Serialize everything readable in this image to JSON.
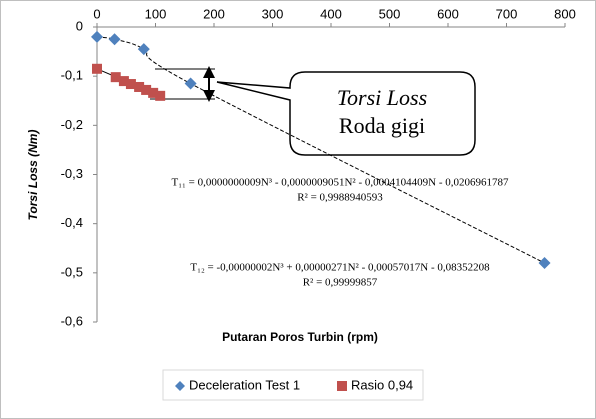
{
  "chart_data": {
    "type": "scatter",
    "xlabel": "Putaran Poros Turbin (rpm)",
    "ylabel": "Torsi Loss (Nm)",
    "xlim": [
      0,
      800
    ],
    "xticks": [
      0,
      100,
      200,
      300,
      400,
      500,
      600,
      700,
      800
    ],
    "ylim": [
      -0.6,
      0
    ],
    "yticks": [
      0,
      {
        "value": -0.1,
        "label": "-0,1"
      },
      {
        "value": -0.2,
        "label": "-0,2"
      },
      {
        "value": -0.3,
        "label": "-0,3"
      },
      {
        "value": -0.4,
        "label": "-0,4"
      },
      {
        "value": -0.5,
        "label": "-0,5"
      },
      {
        "value": -0.6,
        "label": "-0,6"
      }
    ],
    "grid": false,
    "series": [
      {
        "name": "Deceleration Test 1",
        "color": "#4f81bd",
        "marker": "diamond",
        "trendline": "dashed",
        "x": [
          0,
          30,
          80,
          160,
          765
        ],
        "values": [
          -0.02,
          -0.025,
          -0.045,
          -0.115,
          -0.48
        ]
      },
      {
        "name": "Rasio 0,94",
        "color": "#c0504d",
        "marker": "square",
        "trendline": "solid",
        "x": [
          0,
          32,
          46,
          58,
          72,
          84,
          96,
          108
        ],
        "values": [
          -0.085,
          -0.102,
          -0.11,
          -0.116,
          -0.122,
          -0.128,
          -0.134,
          -0.14
        ]
      }
    ],
    "annotations": {
      "callout_1": "Torsi  Loss",
      "callout_2": "Roda gigi",
      "eq1": "T₁₁ = 0,0000000009N³ - 0,0000009051N² - 0,0004104409N - 0,0206961787",
      "r1": "R² = 0,9988940593",
      "eq2": "T₁₂ = -0,00000002N³ + 0,00000271N² - 0,00057017N - 0,08352208",
      "r2": "R² = 0,99999857"
    },
    "legend": "bottom"
  }
}
